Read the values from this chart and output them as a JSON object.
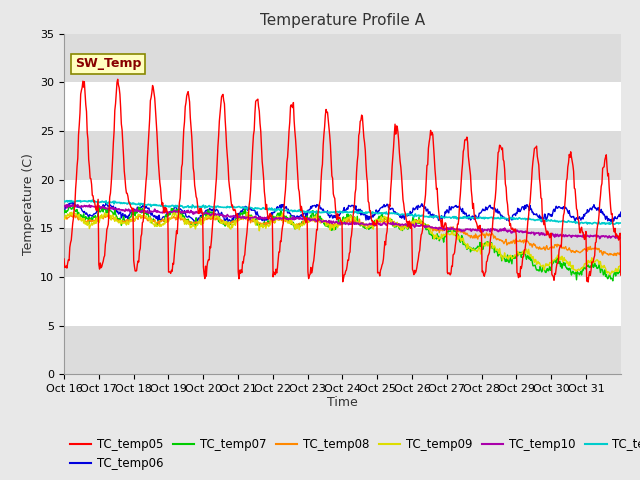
{
  "title": "Temperature Profile A",
  "xlabel": "Time",
  "ylabel": "Temperature (C)",
  "ylim": [
    0,
    35
  ],
  "series_colors": {
    "TC_temp05": "#FF0000",
    "TC_temp06": "#0000DD",
    "TC_temp07": "#00CC00",
    "TC_temp08": "#FF8800",
    "TC_temp09": "#DDDD00",
    "TC_temp10": "#AA00AA",
    "TC_temp11": "#00CCCC"
  },
  "sw_temp_box_color": "#FFFFC0",
  "sw_temp_text_color": "#880000",
  "sw_temp_border_color": "#888800",
  "fig_bg_color": "#E8E8E8",
  "plot_bg_color": "#FFFFFF",
  "band_color": "#DCDCDC",
  "grid_color": "#FFFFFF",
  "title_fontsize": 11,
  "axis_label_fontsize": 9,
  "tick_fontsize": 8,
  "legend_fontsize": 8.5
}
